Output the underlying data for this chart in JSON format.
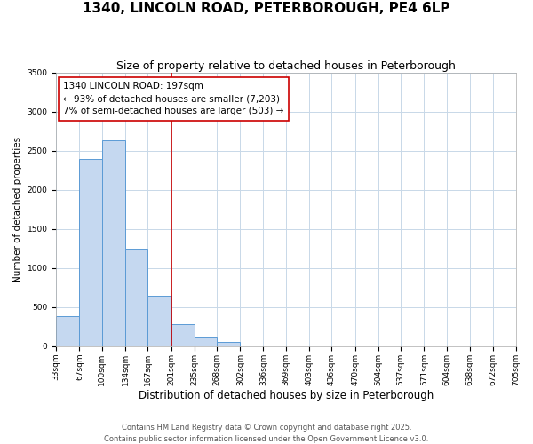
{
  "title": "1340, LINCOLN ROAD, PETERBOROUGH, PE4 6LP",
  "subtitle": "Size of property relative to detached houses in Peterborough",
  "xlabel": "Distribution of detached houses by size in Peterborough",
  "ylabel": "Number of detached properties",
  "bar_values": [
    390,
    2400,
    2630,
    1250,
    650,
    280,
    110,
    55,
    0,
    0,
    0,
    0,
    0,
    0,
    0,
    0,
    0,
    0,
    0,
    0
  ],
  "bin_edges": [
    33,
    67,
    100,
    134,
    167,
    201,
    235,
    268,
    302,
    336,
    369,
    403,
    436,
    470,
    504,
    537,
    571,
    604,
    638,
    672,
    705
  ],
  "tick_labels": [
    "33sqm",
    "67sqm",
    "100sqm",
    "134sqm",
    "167sqm",
    "201sqm",
    "235sqm",
    "268sqm",
    "302sqm",
    "336sqm",
    "369sqm",
    "403sqm",
    "436sqm",
    "470sqm",
    "504sqm",
    "537sqm",
    "571sqm",
    "604sqm",
    "638sqm",
    "672sqm",
    "705sqm"
  ],
  "bar_color": "#c5d8f0",
  "bar_edge_color": "#5b9bd5",
  "vline_x": 201,
  "vline_color": "#cc0000",
  "annotation_line1": "1340 LINCOLN ROAD: 197sqm",
  "annotation_line2": "← 93% of detached houses are smaller (7,203)",
  "annotation_line3": "7% of semi-detached houses are larger (503) →",
  "annotation_box_color": "#cc0000",
  "ylim": [
    0,
    3500
  ],
  "yticks": [
    0,
    500,
    1000,
    1500,
    2000,
    2500,
    3000,
    3500
  ],
  "bg_color": "#ffffff",
  "grid_color": "#c8d8e8",
  "footer1": "Contains HM Land Registry data © Crown copyright and database right 2025.",
  "footer2": "Contains public sector information licensed under the Open Government Licence v3.0.",
  "title_fontsize": 11,
  "subtitle_fontsize": 9,
  "xlabel_fontsize": 8.5,
  "ylabel_fontsize": 7.5,
  "tick_fontsize": 6.5,
  "annotation_fontsize": 7.5,
  "footer_fontsize": 6
}
